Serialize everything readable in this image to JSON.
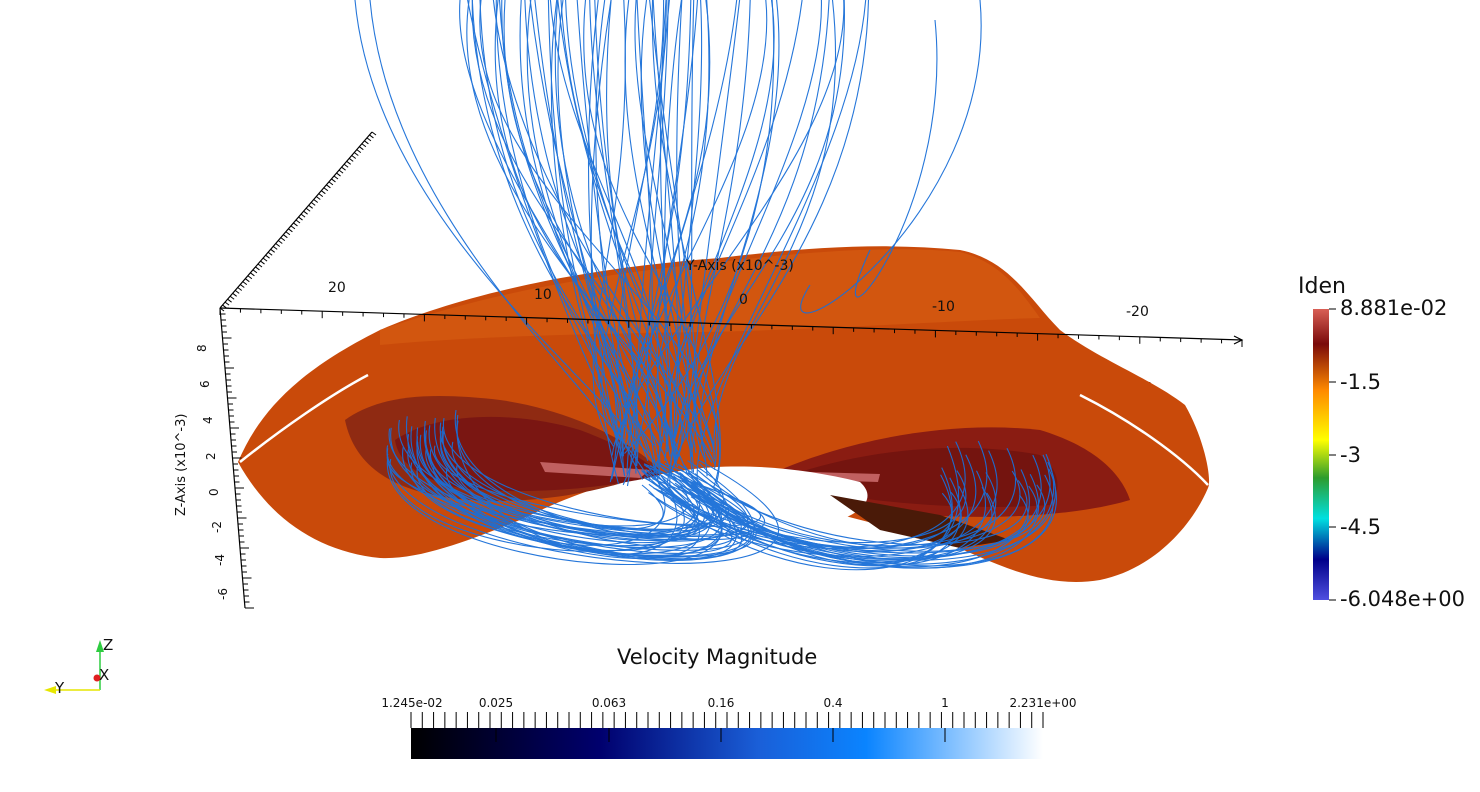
{
  "scene": {
    "y_axis": {
      "title": "Y-Axis (x10^-3)",
      "ticks": [
        "20",
        "10",
        "0",
        "-10",
        "-20"
      ]
    },
    "z_axis": {
      "title": "Z-Axis (x10^-3)",
      "ticks": [
        "8",
        "6",
        "4",
        "2",
        "0",
        "-2",
        "-4",
        "-6"
      ]
    },
    "orientation_axes": {
      "z": "Z",
      "y": "Y",
      "x": "X"
    }
  },
  "iden_legend": {
    "title": "Iden",
    "ticks": [
      "8.881e-02",
      "-1.5",
      "-3",
      "-4.5",
      "-6.048e+00"
    ],
    "colors": [
      "#d95f55",
      "#7a0a0a",
      "#ff8a00",
      "#ffff00",
      "#2d9c2d",
      "#00e0e0",
      "#00008a",
      "#5050e0"
    ]
  },
  "velocity_legend": {
    "title": "Velocity Magnitude",
    "ticks": [
      "1.245e-02",
      "0.025",
      "0.063",
      "0.16",
      "0.4",
      "1",
      "2.231e+00"
    ],
    "colors": [
      "#000000",
      "#00006e",
      "#1a5fd8",
      "#0a84ff",
      "#ffffff"
    ]
  },
  "colors": {
    "surface": "#c94a0a",
    "surface_dark": "#5a1c08",
    "inner": "#8a1a14",
    "streamline": "#1a6fd8"
  }
}
